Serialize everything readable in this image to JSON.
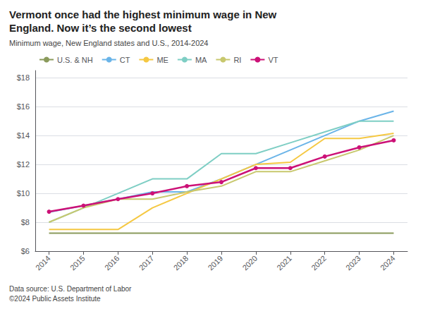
{
  "chart_data": {
    "type": "line",
    "title": "Vermont once had the highest minimum wage in New\nEngland. Now it’s the second lowest",
    "subtitle": "Minimum wage, New England states and U.S., 2014-2024",
    "footnotes": [
      "Data source: U.S. Department of Labor",
      "©2024 Public Assets Institute"
    ],
    "x": [
      2014,
      2015,
      2016,
      2017,
      2018,
      2019,
      2020,
      2021,
      2022,
      2023,
      2024
    ],
    "series": [
      {
        "name": "U.S. & NH",
        "color": "#8a9a5b",
        "values": [
          7.25,
          7.25,
          7.25,
          7.25,
          7.25,
          7.25,
          7.25,
          7.25,
          7.25,
          7.25,
          7.25
        ]
      },
      {
        "name": "CT",
        "color": "#6ab4e8",
        "values": [
          8.7,
          9.15,
          9.6,
          10.1,
          10.1,
          11.0,
          12.0,
          13.0,
          14.0,
          15.0,
          15.69
        ]
      },
      {
        "name": "ME",
        "color": "#f5c842",
        "values": [
          7.5,
          7.5,
          7.5,
          9.0,
          10.0,
          11.0,
          12.0,
          12.15,
          13.8,
          13.8,
          14.15
        ]
      },
      {
        "name": "MA",
        "color": "#7ecec4",
        "values": [
          8.0,
          9.0,
          10.0,
          11.0,
          11.0,
          12.75,
          12.75,
          13.5,
          14.25,
          15.0,
          15.0
        ]
      },
      {
        "name": "RI",
        "color": "#c8c86e",
        "values": [
          8.0,
          9.0,
          9.6,
          9.6,
          10.1,
          10.5,
          11.5,
          11.5,
          12.25,
          13.0,
          14.0
        ]
      },
      {
        "name": "VT",
        "color": "#cc1177",
        "marker": "circle",
        "values": [
          8.73,
          9.15,
          9.6,
          10.0,
          10.5,
          10.78,
          11.75,
          11.75,
          12.55,
          13.18,
          13.67
        ]
      }
    ],
    "xlim": [
      2013.6,
      2024.4
    ],
    "xticks": [
      2014,
      2015,
      2016,
      2017,
      2018,
      2019,
      2020,
      2021,
      2022,
      2023,
      2024
    ],
    "ylim": [
      6.0,
      18.5
    ],
    "yticks": [
      {
        "value": 6,
        "label": "$6"
      },
      {
        "value": 8,
        "label": "$8"
      },
      {
        "value": 10,
        "label": "$10"
      },
      {
        "value": 12,
        "label": "$12"
      },
      {
        "value": 14,
        "label": "$14"
      },
      {
        "value": 16,
        "label": "$16"
      },
      {
        "value": 18,
        "label": "$18"
      }
    ],
    "grid": "y",
    "legend": "upper left"
  }
}
